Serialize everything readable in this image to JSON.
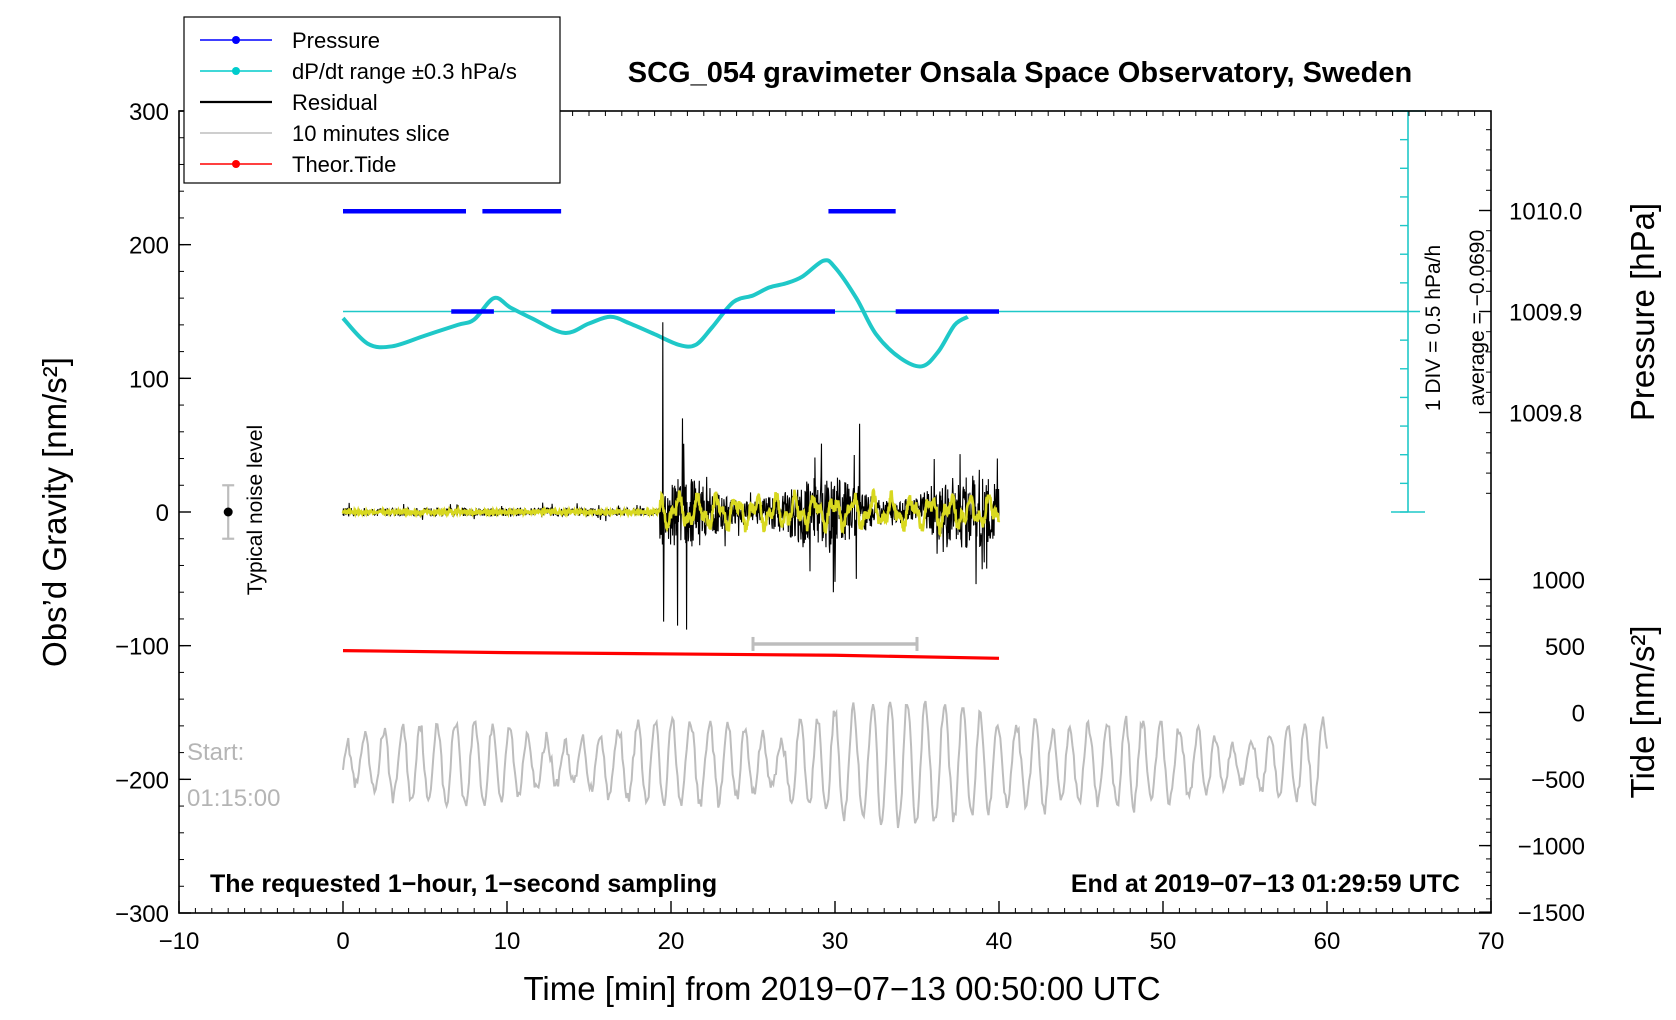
{
  "chart_data": {
    "type": "line",
    "title": "SCG_054 gravimeter Onsala Space Observatory, Sweden",
    "xlabel": "Time [min] from 2019−07−13 00:50:00 UTC",
    "ylabel": "Obs’d Gravity [nm/s²]",
    "y2label_top": "Pressure [hPa]",
    "y2label_bottom": "Tide [nm/s²]",
    "xlim": [
      -10,
      70
    ],
    "ylim": [
      -300,
      300
    ],
    "xticks": [
      -10,
      0,
      10,
      20,
      30,
      40,
      50,
      60,
      70
    ],
    "xtick_labels": [
      "−10",
      "0",
      "10",
      "20",
      "30",
      "40",
      "50",
      "60",
      "70"
    ],
    "yticks": [
      -300,
      -200,
      -100,
      0,
      100,
      200,
      300
    ],
    "ytick_labels": [
      "−300",
      "−200",
      "−100",
      "0",
      "100",
      "200",
      "300"
    ],
    "pressure_ticks": [
      {
        "value": 1010.0,
        "label": "1010.0"
      },
      {
        "value": 1009.9,
        "label": "1009.9"
      },
      {
        "value": 1009.8,
        "label": "1009.8"
      }
    ],
    "tide_ticks": [
      {
        "value": 1000,
        "label": "1000"
      },
      {
        "value": 500,
        "label": "500"
      },
      {
        "value": 0,
        "label": "0"
      },
      {
        "value": -500,
        "label": "−500"
      },
      {
        "value": -1000,
        "label": "−1000"
      },
      {
        "value": -1500,
        "label": "−1500"
      }
    ],
    "legend": [
      {
        "label": "Pressure",
        "color": "#0000ff",
        "marker": true
      },
      {
        "label": "dP/dt range ±0.3 hPa/s",
        "color": "#00cccc",
        "marker": true
      },
      {
        "label": "Residual",
        "color": "#000000",
        "marker": false
      },
      {
        "label": "10 minutes slice",
        "color": "#bdbdbd",
        "marker": false
      },
      {
        "label": "Theor.Tide",
        "color": "#ff0000",
        "marker": true
      }
    ],
    "colors": {
      "pressure": "#0000ff",
      "pressure_line": "#1fc8c8",
      "residual": "#000000",
      "residual_smooth": "#d8d820",
      "slice": "#bdbdbd",
      "tide": "#ff0000",
      "noise_bar": "#bdbdbd"
    },
    "pressure_average": {
      "value": 1009.9,
      "label": "average = −0.0690"
    },
    "pressure_scale_label": "1 DIV = 0.5 hPa/h",
    "pressure_segments_high": [
      [
        0,
        7.5
      ],
      [
        8.5,
        13.3
      ],
      [
        29.6,
        33.7
      ]
    ],
    "pressure_segments_avg": [
      [
        6.6,
        9.2
      ],
      [
        12.7,
        30
      ],
      [
        33.7,
        40
      ]
    ],
    "pressure_curve_gravity": [
      [
        0,
        145
      ],
      [
        1.5,
        126
      ],
      [
        3,
        124
      ],
      [
        5,
        132
      ],
      [
        7,
        140
      ],
      [
        8,
        144
      ],
      [
        9.2,
        160
      ],
      [
        10.2,
        153
      ],
      [
        11.5,
        145
      ],
      [
        13.5,
        134
      ],
      [
        15,
        141
      ],
      [
        16.3,
        146
      ],
      [
        17.5,
        141
      ],
      [
        19,
        133
      ],
      [
        20.5,
        125
      ],
      [
        21.5,
        125
      ],
      [
        22.5,
        138
      ],
      [
        23.8,
        157
      ],
      [
        25,
        162
      ],
      [
        26,
        168
      ],
      [
        27,
        171
      ],
      [
        28,
        176
      ],
      [
        29.3,
        188
      ],
      [
        30,
        183
      ],
      [
        31.3,
        160
      ],
      [
        32.5,
        133
      ],
      [
        34,
        115
      ],
      [
        35.3,
        109
      ],
      [
        36.3,
        120
      ],
      [
        37.3,
        140
      ],
      [
        38.1,
        146
      ]
    ],
    "tide_curve": [
      [
        0,
        465
      ],
      [
        10,
        450
      ],
      [
        20,
        440
      ],
      [
        30,
        430
      ],
      [
        40,
        407
      ]
    ],
    "residual": {
      "x_start": 0,
      "x_end": 40,
      "onset": 19.3,
      "spikes": [
        {
          "x": 19.5,
          "y": 142
        },
        {
          "x": 19.55,
          "y": -82
        },
        {
          "x": 20.4,
          "y": -85
        },
        {
          "x": 20.95,
          "y": -88
        },
        {
          "x": 20.7,
          "y": 70
        },
        {
          "x": 31.5,
          "y": 66
        },
        {
          "x": 39.9,
          "y": 40
        },
        {
          "x": 29.9,
          "y": -60
        },
        {
          "x": 31.3,
          "y": -50
        }
      ]
    },
    "slice_bar": {
      "x_from": 25,
      "x_to": 35,
      "tide_value": 500
    },
    "noise_level": {
      "x": -7,
      "y": 0,
      "range": [
        -20,
        20
      ],
      "label": "Typical noise level"
    },
    "slice_start_label": "Start:",
    "slice_start_time": "01:15:00",
    "slice_x_range": [
      0,
      60
    ],
    "slice_center_gravity": -200
  },
  "annotations": {
    "request": "The requested 1−hour, 1−second sampling",
    "end": "End at 2019−07−13 01:29:59 UTC"
  }
}
